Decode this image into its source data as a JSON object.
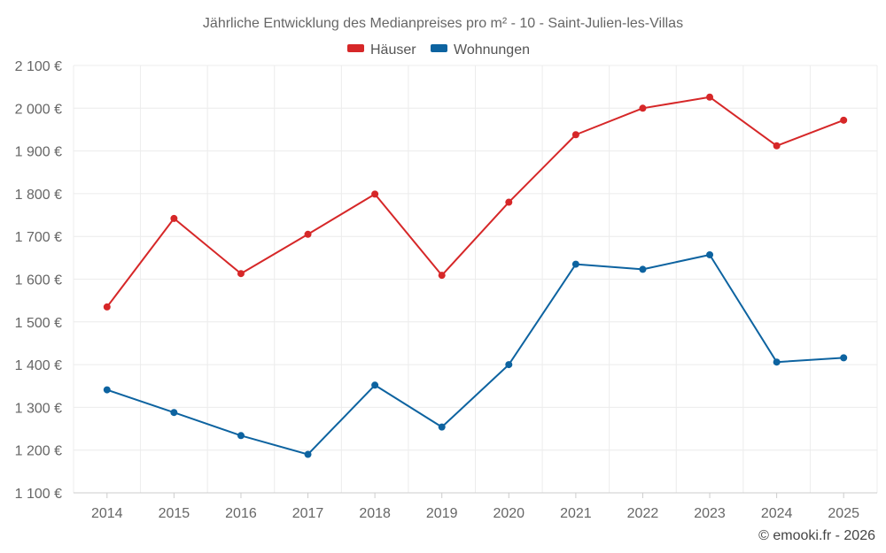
{
  "chart_data": {
    "type": "line",
    "title": "Jährliche Entwicklung des Medianpreises pro m² - 10 - Saint-Julien-les-Villas",
    "categories": [
      "2014",
      "2015",
      "2016",
      "2017",
      "2018",
      "2019",
      "2020",
      "2021",
      "2022",
      "2023",
      "2024",
      "2025"
    ],
    "series": [
      {
        "name": "Häuser",
        "color": "#d62728",
        "values": [
          1535,
          1742,
          1613,
          1705,
          1799,
          1609,
          1780,
          1938,
          2000,
          2026,
          1912,
          1972
        ]
      },
      {
        "name": "Wohnungen",
        "color": "#0d63a0",
        "values": [
          1341,
          1288,
          1234,
          1190,
          1352,
          1254,
          1400,
          1635,
          1623,
          1657,
          1406,
          1416
        ]
      }
    ],
    "ylim": [
      1100,
      2100
    ],
    "yticks": [
      1100,
      1200,
      1300,
      1400,
      1500,
      1600,
      1700,
      1800,
      1900,
      2000,
      2100
    ],
    "ytick_labels": [
      "1 100 €",
      "1 200 €",
      "1 300 €",
      "1 400 €",
      "1 500 €",
      "1 600 €",
      "1 700 €",
      "1 800 €",
      "1 900 €",
      "2 000 €",
      "2 100 €"
    ],
    "grid": true,
    "legend_position": "top-center",
    "xlabel": "",
    "ylabel": ""
  },
  "credit": "© emooki.fr - 2026"
}
